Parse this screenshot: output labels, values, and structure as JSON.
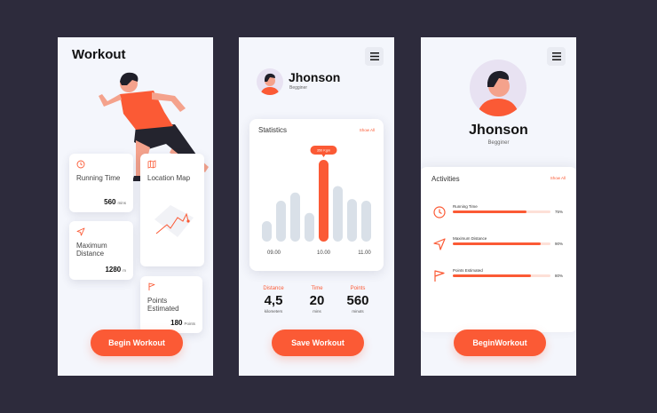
{
  "screen1": {
    "title": "Workout",
    "cards": {
      "running": {
        "title": "Running Time",
        "value": "560",
        "unit": "mins"
      },
      "location": {
        "title": "Location Map"
      },
      "distance": {
        "title": "Maximum Distance",
        "value": "1280",
        "unit": "m"
      },
      "points": {
        "title": "Points Estimated",
        "value": "180",
        "unit": "Points"
      }
    },
    "button": "Begin Workout"
  },
  "screen2": {
    "name": "Jhonson",
    "level": "Begginer",
    "statistics_title": "Statistics",
    "show_all": "Show All",
    "tooltip": "350 Kgm",
    "metrics": {
      "distance": {
        "label": "Distance",
        "value": "4,5",
        "unit": "kilometers"
      },
      "time": {
        "label": "Time",
        "value": "20",
        "unit": "mins"
      },
      "points": {
        "label": "Points",
        "value": "560",
        "unit": "minuts"
      }
    },
    "button": "Save Workout"
  },
  "screen3": {
    "name": "Jhonson",
    "level": "Begginer",
    "activities_title": "Activities",
    "show_all": "Show All",
    "activities": [
      {
        "label": "Running Time",
        "percent_label": "75%",
        "progress": 0.75,
        "icon": "clock-icon"
      },
      {
        "label": "Maximum Distance",
        "percent_label": "90%",
        "progress": 0.9,
        "icon": "navigation-icon"
      },
      {
        "label": "Points Estimated",
        "percent_label": "80%",
        "progress": 0.8,
        "icon": "flag-icon"
      }
    ],
    "button": "BeginWorkout"
  },
  "colors": {
    "accent": "#fb5a35",
    "background": "#2d2b3c",
    "screen": "#f4f6fc",
    "bar_inactive": "#d9e0e8"
  },
  "chart_data": {
    "type": "bar",
    "categories": [
      "",
      "",
      "",
      "",
      "",
      "",
      "",
      ""
    ],
    "values": [
      25,
      50,
      60,
      35,
      100,
      68,
      52,
      50
    ],
    "highlight_index": 4,
    "x_tick_labels": [
      "09.00",
      "10.00",
      "11.00"
    ],
    "annotation": "350 Kgm",
    "title": "Statistics"
  }
}
